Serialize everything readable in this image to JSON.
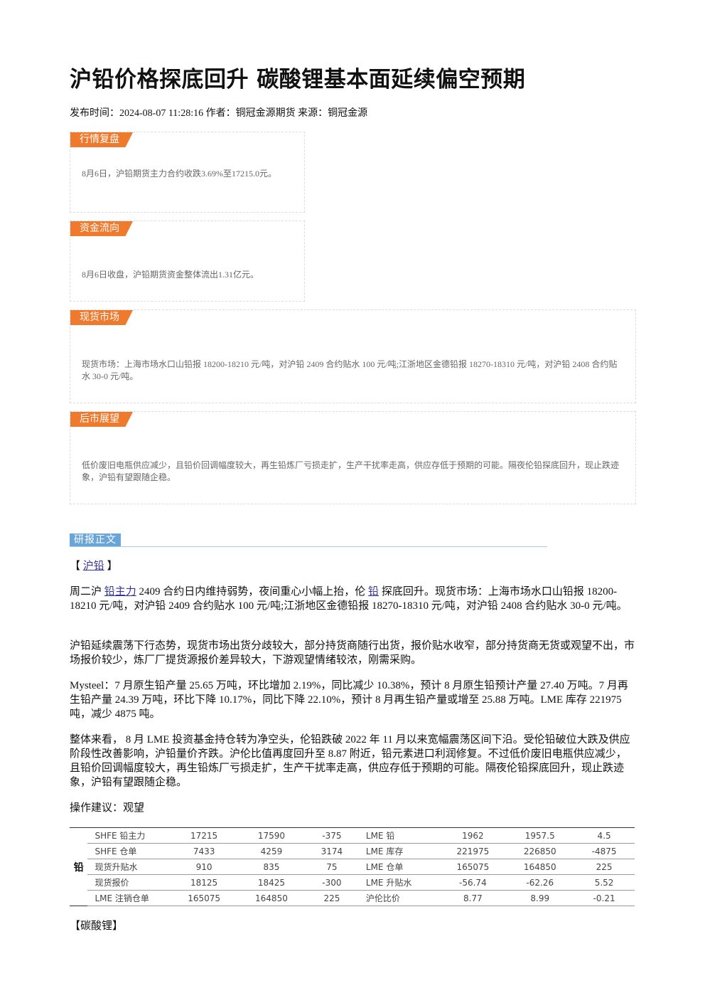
{
  "header": {
    "title": "沪铅价格探底回升 碳酸锂基本面延续偏空预期",
    "meta": "发布时间：2024-08-07 11:28:16 作者：铜冠金源期货 来源：铜冠金源"
  },
  "sections": [
    {
      "label": "行情复盘",
      "text": "8月6日，沪铅期货主力合约收跌3.69%至17215.0元。"
    },
    {
      "label": "资金流向",
      "text": "8月6日收盘，沪铅期货资金整体流出1.31亿元。"
    },
    {
      "label": "现货市场",
      "text": "现货市场：上海市场水口山铅报 18200-18210 元/吨，对沪铅 2409 合约贴水 100 元/吨;江浙地区金德铅报 18270-18310 元/吨，对沪铅 2408 合约贴水 30-0 元/吨。"
    },
    {
      "label": "后市展望",
      "text": "低价废旧电瓶供应减少，且铅价回调幅度较大，再生铅炼厂亏损走扩，生产干扰率走高，供应存低于预期的可能。隔夜伦铅探底回升，现止跌迹象，沪铅有望跟随企稳。"
    }
  ],
  "report": {
    "label": "研报正文",
    "tag_1": {
      "open": "【",
      "link": "沪铅",
      "close": "】"
    },
    "paragraph_1": {
      "before": "周二沪",
      "link_1": "铅主力",
      "middle": "2409 合约日内维持弱势，夜间重心小幅上抬，伦",
      "link_2": "铅",
      "after": "探底回升。现货市场：上海市场水口山铅报 18200-18210 元/吨，对沪铅 2409 合约贴水 100 元/吨;江浙地区金德铅报 18270-18310 元/吨，对沪铅 2408 合约贴水 30-0 元/吨。"
    },
    "paragraphs": [
      "沪铅延续震荡下行态势，现货市场出货分歧较大，部分持货商随行出货，报价贴水收窄，部分持货商无货或观望不出，市场报价较少，炼厂厂提货源报价差异较大，下游观望情绪较浓，刚需采购。",
      "Mysteel：7 月原生铅产量 25.65 万吨，环比增加 2.19%，同比减少 10.38%，预计 8 月原生铅预计产量 27.40 万吨。7 月再生铅产量 24.39 万吨，环比下降 10.17%，同比下降 22.10%，预计 8 月再生铅产量或增至 25.88 万吨。LME 库存 221975 吨，减少 4875 吨。",
      "整体来看， 8 月 LME 投资基金持仓转为净空头，伦铅跌破 2022 年 11 月以来宽幅震荡区间下沿。受伦铅破位大跌及供应阶段性改善影响，沪铅量价齐跌。沪伦比值再度回升至 8.87 附近，铅元素进口利润修复。不过低价废旧电瓶供应减少，且铅价回调幅度较大，再生铅炼厂亏损走扩，生产干扰率走高，供应存低于预期的可能。隔夜伦铅探底回升，现止跌迹象，沪铅有望跟随企稳。",
      "操作建议：观望"
    ],
    "table": {
      "side_label": "铅",
      "rows": [
        [
          "SHFE 铅主力",
          "17215",
          "17590",
          "-375",
          "LME 铅",
          "1962",
          "1957.5",
          "4.5"
        ],
        [
          "SHFE 仓单",
          "7433",
          "4259",
          "3174",
          "LME 库存",
          "221975",
          "226850",
          "-4875"
        ],
        [
          "现货升贴水",
          "910",
          "835",
          "75",
          "LME 仓单",
          "165075",
          "164850",
          "225"
        ],
        [
          "现货报价",
          "18125",
          "18425",
          "-300",
          "LME 升贴水",
          "-56.74",
          "-62.26",
          "5.52"
        ],
        [
          "LME 注销仓单",
          "165075",
          "164850",
          "225",
          "沪伦比价",
          "8.77",
          "8.99",
          "-0.21"
        ]
      ]
    },
    "tag_2": "【碳酸锂】"
  }
}
